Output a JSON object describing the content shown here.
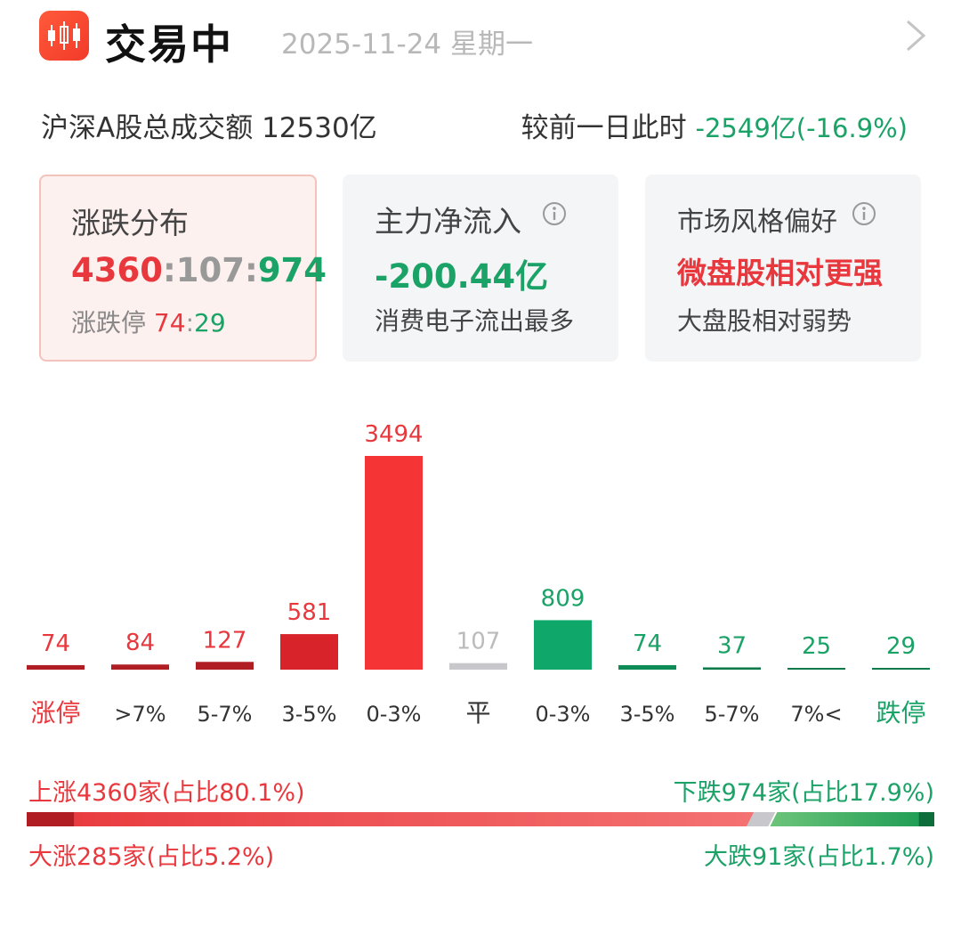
{
  "header": {
    "title": "交易中",
    "date": "2025-11-24 星期一",
    "icons": {
      "app": "candlestick-chart-icon",
      "more": "chevron-right-icon"
    }
  },
  "turnover": {
    "label": "沪深A股总成交额",
    "value": "12530亿",
    "compare_label": "较前一日此时",
    "compare_value": "-2549亿(-16.9%)"
  },
  "cards": {
    "distribution": {
      "title": "涨跌分布",
      "up": "4360",
      "sep1": ":",
      "flat": "107",
      "sep2": ":",
      "down": "974",
      "limit_label": "涨跌停",
      "limit_up": "74",
      "limit_sep": ":",
      "limit_down": "29"
    },
    "capital_flow": {
      "title": "主力净流入",
      "value": "-200.44亿",
      "sub": "消费电子流出最多"
    },
    "style": {
      "title": "市场风格偏好",
      "value": "微盘股相对更强",
      "sub": "大盘股相对弱势"
    }
  },
  "chart_data": {
    "type": "bar",
    "categories": [
      "涨停",
      ">7%",
      "5-7%",
      "3-5%",
      "0-3%",
      "平",
      "0-3%",
      "3-5%",
      "5-7%",
      "7%<",
      "跌停"
    ],
    "values": [
      74,
      84,
      127,
      581,
      3494,
      107,
      809,
      74,
      37,
      25,
      29
    ],
    "colors": [
      "#b01e23",
      "#b01e23",
      "#b01e23",
      "#d8232a",
      "#f53535",
      "#c8c8cc",
      "#0fa86a",
      "#0e8c58",
      "#0d7a4c",
      "#0d7a4c",
      "#0d7a4c"
    ],
    "label_colors": [
      "#e8383d",
      "#e8383d",
      "#e8383d",
      "#e8383d",
      "#e8383d",
      "#bbbbbb",
      "#1aa267",
      "#1aa267",
      "#1aa267",
      "#1aa267",
      "#1aa267"
    ],
    "category_colors": [
      "#e8383d",
      "#333333",
      "#333333",
      "#333333",
      "#333333",
      "#333333",
      "#333333",
      "#333333",
      "#333333",
      "#333333",
      "#1aa267"
    ],
    "ylim": [
      0,
      3494
    ]
  },
  "summary": {
    "up_text": "上涨4360家(占比80.1%)",
    "down_text": "下跌974家(占比17.9%)",
    "big_up_text": "大涨285家(占比5.2%)",
    "big_down_text": "大跌91家(占比1.7%)",
    "big_up_share": 5.2,
    "up_share": 80.1,
    "flat_share": 2.0,
    "down_share": 17.9,
    "big_down_share": 1.7
  },
  "colors": {
    "red": "#e8383d",
    "green": "#1aa267",
    "gray": "#bbbbbb"
  }
}
